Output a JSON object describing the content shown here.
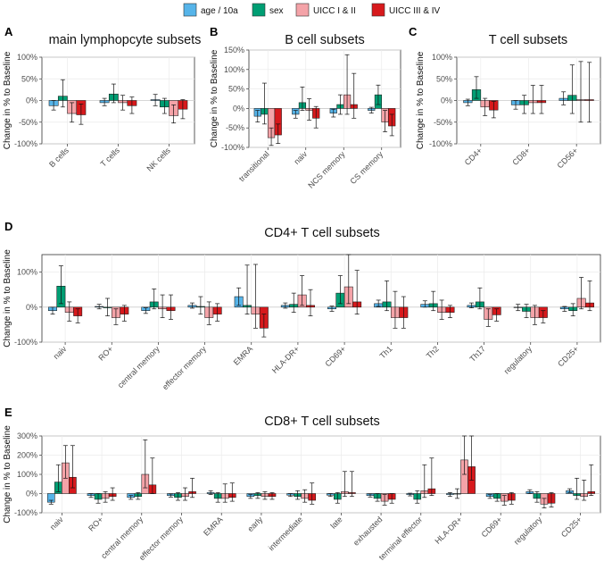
{
  "legend": {
    "items": [
      {
        "label": "age / 10a",
        "color": "#56B4E9"
      },
      {
        "label": "sex",
        "color": "#009E73"
      },
      {
        "label": "UICC I & II",
        "color": "#F4A3A8"
      },
      {
        "label": "UICC III & IV",
        "color": "#D7191C"
      }
    ]
  },
  "chart_data": [
    {
      "letter": "A",
      "type": "bar",
      "title": "main lymphopcyte subsets",
      "ylabel": "Change in % to Baseline",
      "ylim": [
        -100,
        100
      ],
      "yticks": [
        -100,
        -50,
        0,
        50,
        100
      ],
      "yticklabels": [
        "-100%",
        "-50%",
        "0%",
        "50%",
        "100%"
      ],
      "categories": [
        "B cells",
        "T cells",
        "NK cells"
      ],
      "series": [
        {
          "name": "age / 10a",
          "values": [
            -12,
            -5,
            2
          ],
          "err_low": [
            -22,
            -12,
            -12
          ],
          "err_high": [
            0,
            5,
            14
          ]
        },
        {
          "name": "sex",
          "values": [
            10,
            15,
            -15
          ],
          "err_low": [
            -15,
            -5,
            -30
          ],
          "err_high": [
            48,
            38,
            5
          ]
        },
        {
          "name": "UICC I & II",
          "values": [
            -30,
            -5,
            -35
          ],
          "err_low": [
            -50,
            -22,
            -52
          ],
          "err_high": [
            -5,
            12,
            -10
          ]
        },
        {
          "name": "UICC III & IV",
          "values": [
            -33,
            -12,
            -20
          ],
          "err_low": [
            -55,
            -30,
            -42
          ],
          "err_high": [
            -8,
            8,
            2
          ]
        }
      ]
    },
    {
      "letter": "B",
      "type": "bar",
      "title": "B cell subsets",
      "ylabel": "Change in % to Baseline",
      "ylim": [
        -100,
        150
      ],
      "yticks": [
        -100,
        -50,
        0,
        50,
        100,
        150
      ],
      "yticklabels": [
        "-100%",
        "-50%",
        "0%",
        "50%",
        "100%",
        "150%"
      ],
      "categories": [
        "transitional",
        "naiv",
        "NCS memory",
        "CS memory"
      ],
      "series": [
        {
          "name": "age / 10a",
          "values": [
            -20,
            -15,
            -12,
            -5
          ],
          "err_low": [
            -35,
            -25,
            -22,
            -12
          ],
          "err_high": [
            -5,
            -5,
            -2,
            3
          ]
        },
        {
          "name": "sex",
          "values": [
            -15,
            15,
            10,
            35
          ],
          "err_low": [
            -40,
            -5,
            -15,
            10
          ],
          "err_high": [
            65,
            55,
            35,
            60
          ]
        },
        {
          "name": "UICC I & II",
          "values": [
            -75,
            -5,
            35,
            -35
          ],
          "err_low": [
            -95,
            -30,
            -15,
            -60
          ],
          "err_high": [
            -50,
            25,
            138,
            -5
          ]
        },
        {
          "name": "UICC III & IV",
          "values": [
            -68,
            -25,
            10,
            -45
          ],
          "err_low": [
            -90,
            -50,
            -25,
            -70
          ],
          "err_high": [
            -40,
            5,
            90,
            -15
          ]
        }
      ]
    },
    {
      "letter": "C",
      "type": "bar",
      "title": "T cell subsets",
      "ylabel": "Change in % to Baseline",
      "ylim": [
        -100,
        100
      ],
      "yticks": [
        -100,
        -50,
        0,
        50,
        100
      ],
      "yticklabels": [
        "-100%",
        "-50%",
        "0%",
        "50%",
        "100%"
      ],
      "categories": [
        "CD4+",
        "CD8+",
        "CD56+"
      ],
      "series": [
        {
          "name": "age / 10a",
          "values": [
            -5,
            -10,
            5
          ],
          "err_low": [
            -12,
            -20,
            -10
          ],
          "err_high": [
            3,
            0,
            20
          ]
        },
        {
          "name": "sex",
          "values": [
            25,
            -10,
            12
          ],
          "err_low": [
            5,
            -30,
            -30
          ],
          "err_high": [
            55,
            12,
            82
          ]
        },
        {
          "name": "UICC I & II",
          "values": [
            -15,
            -5,
            2
          ],
          "err_low": [
            -35,
            -30,
            -50
          ],
          "err_high": [
            5,
            35,
            90
          ]
        },
        {
          "name": "UICC III & IV",
          "values": [
            -22,
            -5,
            2
          ],
          "err_low": [
            -40,
            -30,
            -50
          ],
          "err_high": [
            -2,
            35,
            88
          ]
        }
      ]
    },
    {
      "letter": "D",
      "type": "bar",
      "title": "CD4+ T cell subsets",
      "ylabel": "Change in % to Baseline",
      "ylim": [
        -100,
        150
      ],
      "yticks": [
        -100,
        0,
        100
      ],
      "yticklabels": [
        "-100%",
        "0%",
        "100%"
      ],
      "categories": [
        "naiv",
        "RO+",
        "central memory",
        "effector memory",
        "EMRA",
        "HLA-DR+",
        "CD69+",
        "Th1",
        "Th2",
        "Th17",
        "regulatory",
        "CD25+"
      ],
      "series": [
        {
          "name": "age / 10a",
          "values": [
            -10,
            2,
            -10,
            5,
            30,
            5,
            -5,
            10,
            8,
            5,
            0,
            -5
          ],
          "err_low": [
            -20,
            -5,
            -18,
            -3,
            5,
            -3,
            -12,
            2,
            0,
            -2,
            -10,
            -12
          ],
          "err_high": [
            0,
            8,
            -2,
            12,
            55,
            12,
            3,
            20,
            18,
            12,
            8,
            2
          ]
        },
        {
          "name": "sex",
          "values": [
            60,
            -2,
            15,
            2,
            5,
            8,
            40,
            15,
            10,
            15,
            -12,
            -10
          ],
          "err_low": [
            10,
            -25,
            -5,
            -20,
            -20,
            -15,
            10,
            -10,
            -10,
            -5,
            -30,
            -25
          ],
          "err_high": [
            118,
            25,
            52,
            30,
            120,
            40,
            90,
            75,
            45,
            55,
            8,
            10
          ]
        },
        {
          "name": "UICC I & II",
          "values": [
            -15,
            -30,
            -5,
            -30,
            -20,
            35,
            58,
            -30,
            -15,
            -35,
            -30,
            25
          ],
          "err_low": [
            -40,
            -50,
            -30,
            -50,
            -60,
            5,
            10,
            -60,
            -35,
            -55,
            -50,
            -5
          ],
          "err_high": [
            15,
            -5,
            35,
            15,
            122,
            90,
            155,
            45,
            20,
            -5,
            5,
            85
          ]
        },
        {
          "name": "UICC III & IV",
          "values": [
            -25,
            -20,
            -10,
            -20,
            -60,
            5,
            15,
            -30,
            -15,
            -22,
            -30,
            12
          ],
          "err_low": [
            -45,
            -40,
            -35,
            -40,
            -85,
            -25,
            -20,
            -60,
            -30,
            -40,
            -45,
            -10
          ],
          "err_high": [
            -5,
            5,
            35,
            10,
            -20,
            50,
            105,
            30,
            5,
            -5,
            -10,
            75
          ]
        }
      ]
    },
    {
      "letter": "E",
      "type": "bar",
      "title": "CD8+ T cell subsets",
      "ylabel": "Change in % to Baseline",
      "ylim": [
        -100,
        300
      ],
      "yticks": [
        -100,
        0,
        100,
        200,
        300
      ],
      "yticklabels": [
        "-100%",
        "0%",
        "100%",
        "200%",
        "300%"
      ],
      "categories": [
        "naiv",
        "RO+",
        "central memory",
        "effector memory",
        "EMRA",
        "early",
        "intermediate",
        "late",
        "exhausted",
        "terminal effector",
        "HLA-DR+",
        "CD69+",
        "regulatory",
        "CD25+"
      ],
      "series": [
        {
          "name": "age / 10a",
          "values": [
            -45,
            -10,
            -20,
            -10,
            5,
            -15,
            -8,
            -8,
            -10,
            -5,
            -5,
            -15,
            10,
            15
          ],
          "err_low": [
            -55,
            -20,
            -30,
            -18,
            -5,
            -25,
            -15,
            -15,
            -18,
            -12,
            -15,
            -25,
            0,
            5
          ],
          "err_high": [
            -35,
            0,
            -10,
            -2,
            15,
            -5,
            0,
            0,
            -2,
            2,
            5,
            -5,
            20,
            25
          ]
        },
        {
          "name": "sex",
          "values": [
            60,
            -30,
            -15,
            -20,
            -25,
            -10,
            -15,
            -30,
            -25,
            -30,
            0,
            -25,
            -25,
            -10
          ],
          "err_low": [
            10,
            -50,
            -30,
            -35,
            -45,
            -25,
            -30,
            -50,
            -40,
            -50,
            -25,
            -40,
            -45,
            -30
          ],
          "err_high": [
            150,
            0,
            5,
            5,
            5,
            5,
            15,
            5,
            0,
            15,
            25,
            0,
            10,
            80
          ]
        },
        {
          "name": "UICC I & II",
          "values": [
            160,
            -25,
            100,
            -15,
            -25,
            -15,
            -25,
            10,
            -40,
            15,
            175,
            -40,
            -55,
            -15
          ],
          "err_low": [
            80,
            -45,
            30,
            -35,
            -45,
            -30,
            -45,
            -15,
            -60,
            -20,
            100,
            -60,
            -75,
            -35
          ],
          "err_high": [
            250,
            10,
            280,
            30,
            50,
            10,
            20,
            115,
            -5,
            150,
            320,
            -10,
            -25,
            70
          ]
        },
        {
          "name": "UICC III & IV",
          "values": [
            85,
            -15,
            45,
            10,
            -20,
            -15,
            -35,
            5,
            -30,
            25,
            140,
            -35,
            -50,
            10
          ],
          "err_low": [
            30,
            -35,
            0,
            -20,
            -40,
            -30,
            -55,
            -15,
            -50,
            -10,
            70,
            -55,
            -70,
            -10
          ],
          "err_high": [
            250,
            30,
            185,
            80,
            55,
            5,
            55,
            115,
            0,
            185,
            320,
            5,
            5,
            150
          ]
        }
      ]
    }
  ]
}
